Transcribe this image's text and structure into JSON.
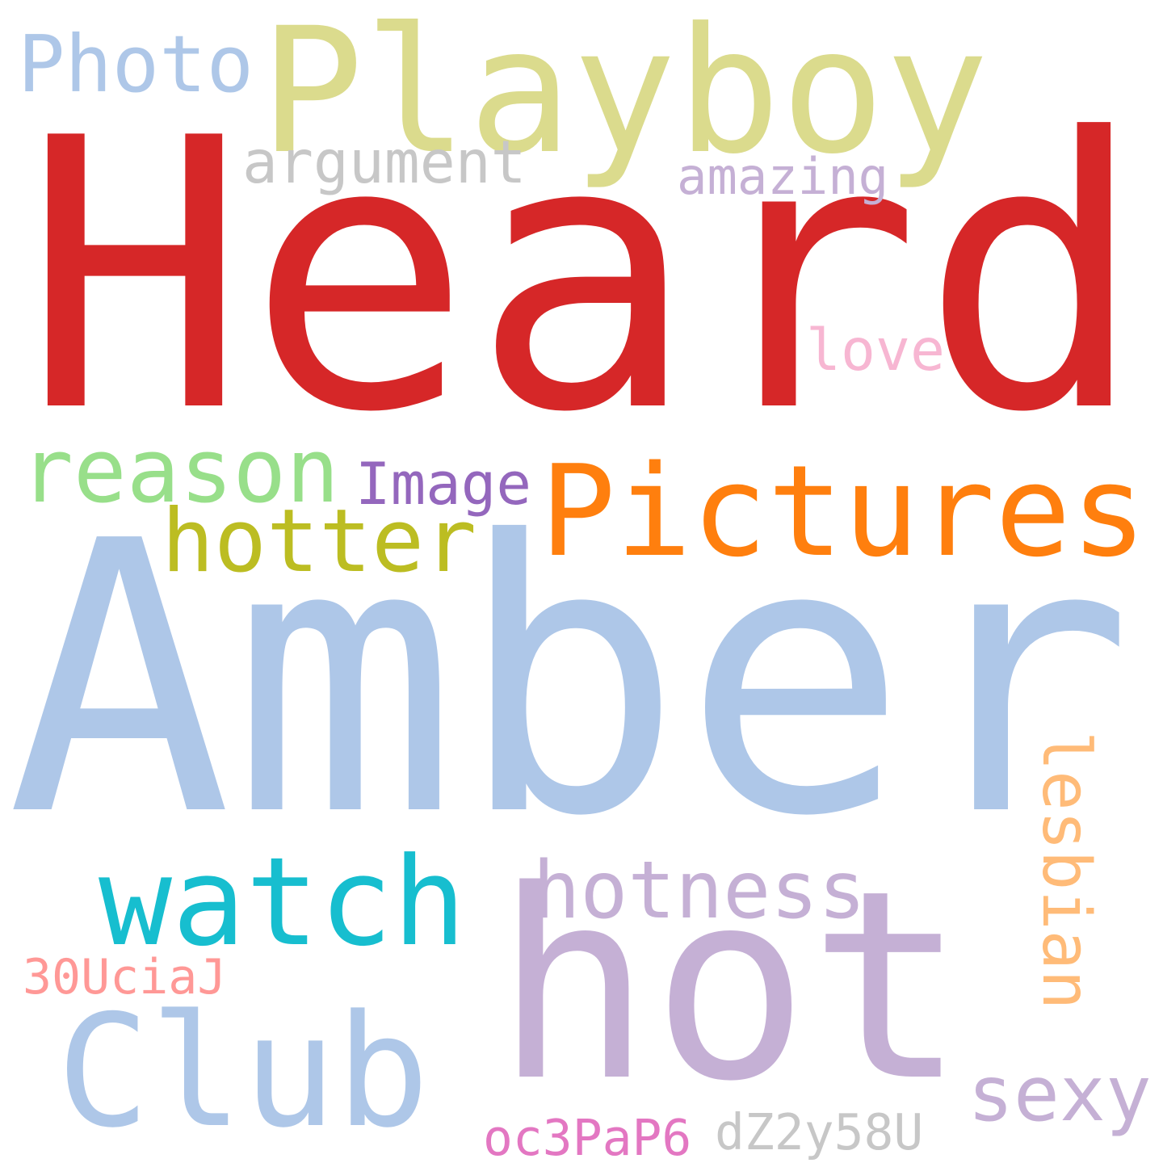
{
  "words": [
    {
      "key": "playboy",
      "text": "Playboy",
      "color": "#dbdb8d"
    },
    {
      "key": "photo",
      "text": "Photo",
      "color": "#aec7e8"
    },
    {
      "key": "heard",
      "text": "Heard",
      "color": "#d62728"
    },
    {
      "key": "argument",
      "text": "argument",
      "color": "#c7c7c7"
    },
    {
      "key": "amazing",
      "text": "amazing",
      "color": "#c5b0d5"
    },
    {
      "key": "love",
      "text": "love",
      "color": "#f7b6d2"
    },
    {
      "key": "reason",
      "text": "reason",
      "color": "#98df8a"
    },
    {
      "key": "image",
      "text": "Image",
      "color": "#9467bd"
    },
    {
      "key": "pictures",
      "text": "Pictures",
      "color": "#ff7f0e"
    },
    {
      "key": "hotter",
      "text": "hotter",
      "color": "#bcbd22"
    },
    {
      "key": "amber",
      "text": "Amber",
      "color": "#aec7e8"
    },
    {
      "key": "lesbian",
      "text": "lesbian",
      "color": "#ffbb78"
    },
    {
      "key": "hotness",
      "text": "hotness",
      "color": "#c5b0d5"
    },
    {
      "key": "watch",
      "text": "watch",
      "color": "#17becf"
    },
    {
      "key": "hot",
      "text": "hot",
      "color": "#c5b0d5"
    },
    {
      "key": "code1",
      "text": "30UciaJ",
      "color": "#ff9896"
    },
    {
      "key": "club",
      "text": "Club",
      "color": "#aec7e8"
    },
    {
      "key": "sexy",
      "text": "sexy",
      "color": "#c5b0d5"
    },
    {
      "key": "code2",
      "text": "oc3PaP6",
      "color": "#e377c2"
    },
    {
      "key": "code3",
      "text": "dZ2y58U",
      "color": "#c7c7c7"
    }
  ]
}
